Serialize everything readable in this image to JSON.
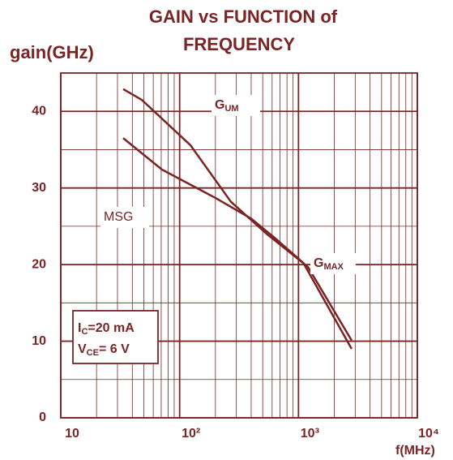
{
  "chart_data": {
    "type": "line",
    "title": "GAIN vs FUNCTION of",
    "subtitle": "FREQUENCY",
    "y_label": "gain(GHz)",
    "x_label": "f(MHz)",
    "xscale": "log",
    "grid": true,
    "color": "#7a2424",
    "xlim": [
      10,
      10000
    ],
    "ylim": [
      0,
      45
    ],
    "xticks": [
      10,
      {
        "value": 100,
        "label": "10²"
      },
      {
        "value": 1000,
        "label": "10³"
      },
      {
        "value": 10000,
        "label": "10⁴"
      }
    ],
    "yticks": [
      0,
      10,
      20,
      30,
      40
    ],
    "series": [
      {
        "label": {
          "text": "G",
          "sub": "UM"
        },
        "color": "#7a2424",
        "x": [
          33.5,
          48,
          123,
          270,
          550,
          1200,
          2800
        ],
        "values": [
          42.9,
          41.5,
          35.6,
          28.2,
          23.9,
          19.7,
          10.1
        ]
      },
      {
        "label": {
          "text": "MSG"
        },
        "label2": {
          "text": "G",
          "sub": "MAX"
        },
        "color": "#7a2424",
        "x": [
          33.5,
          71,
          200,
          400,
          640,
          1100,
          2800
        ],
        "values": [
          36.5,
          32.4,
          28.7,
          26,
          23.4,
          20.2,
          9.0
        ]
      }
    ],
    "conditions": [
      {
        "text": "I",
        "sub": "C",
        "rest": "=20 mA"
      },
      {
        "text": "V",
        "sub": "CE",
        "rest": "= 6 V"
      }
    ]
  }
}
